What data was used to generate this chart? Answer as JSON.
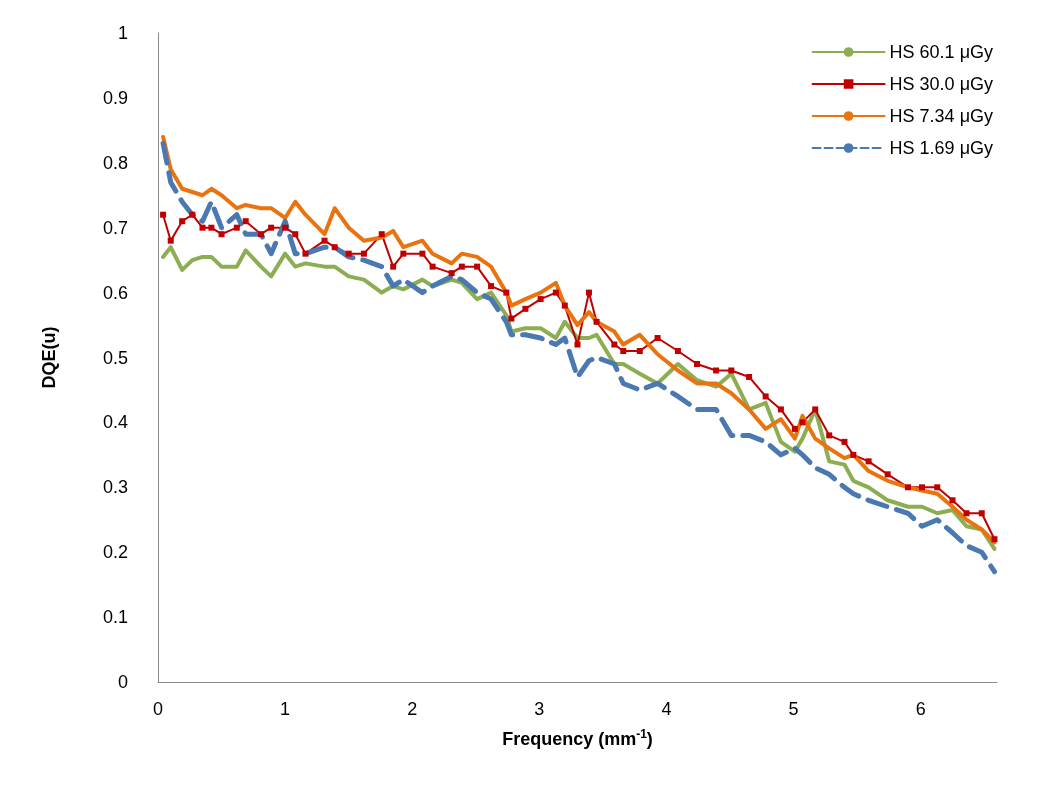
{
  "chart_data": {
    "type": "line",
    "xlabel": "Frequency (mm$^{-1}$)",
    "ylabel": "DQE(u)",
    "xlim": [
      0,
      6.6
    ],
    "xticks": [
      0,
      1,
      2,
      3,
      4,
      5,
      6
    ],
    "ylim": [
      0,
      1
    ],
    "yticks": [
      0,
      0.1,
      0.2,
      0.3,
      0.4,
      0.5,
      0.6,
      0.7,
      0.8,
      0.9,
      1
    ],
    "grid": false,
    "legend": "top right",
    "x": [
      0.04,
      0.1,
      0.19,
      0.27,
      0.35,
      0.42,
      0.5,
      0.62,
      0.69,
      0.81,
      0.89,
      1.0,
      1.08,
      1.16,
      1.31,
      1.39,
      1.5,
      1.62,
      1.76,
      1.85,
      1.93,
      2.08,
      2.16,
      2.31,
      2.39,
      2.51,
      2.62,
      2.74,
      2.78,
      2.89,
      3.01,
      3.13,
      3.2,
      3.3,
      3.39,
      3.45,
      3.59,
      3.66,
      3.79,
      3.93,
      4.09,
      4.24,
      4.39,
      4.51,
      4.65,
      4.78,
      4.9,
      5.01,
      5.07,
      5.17,
      5.28,
      5.4,
      5.47,
      5.59,
      5.74,
      5.9,
      6.01,
      6.13,
      6.25,
      6.36,
      6.48,
      6.58
    ],
    "series": [
      {
        "name": "HS 60.1 μGy",
        "color": "#8cad52",
        "marker": "none",
        "line_style": "solid",
        "values": [
          0.655,
          0.67,
          0.635,
          0.65,
          0.655,
          0.655,
          0.64,
          0.64,
          0.665,
          0.64,
          0.625,
          0.66,
          0.64,
          0.645,
          0.64,
          0.64,
          0.625,
          0.62,
          0.6,
          0.61,
          0.605,
          0.62,
          0.61,
          0.62,
          0.615,
          0.59,
          0.6,
          0.565,
          0.54,
          0.545,
          0.545,
          0.53,
          0.555,
          0.53,
          0.53,
          0.535,
          0.49,
          0.49,
          0.475,
          0.46,
          0.49,
          0.465,
          0.455,
          0.475,
          0.42,
          0.43,
          0.37,
          0.355,
          0.375,
          0.42,
          0.34,
          0.335,
          0.31,
          0.3,
          0.28,
          0.27,
          0.27,
          0.26,
          0.265,
          0.24,
          0.235,
          0.205
        ]
      },
      {
        "name": "HS 30.0 μGy",
        "color": "#c00000",
        "marker": "square",
        "line_style": "solid",
        "values": [
          0.72,
          0.68,
          0.71,
          0.72,
          0.7,
          0.7,
          0.69,
          0.7,
          0.71,
          0.69,
          0.7,
          0.7,
          0.69,
          0.66,
          0.68,
          0.67,
          0.66,
          0.66,
          0.69,
          0.64,
          0.66,
          0.66,
          0.64,
          0.63,
          0.64,
          0.64,
          0.61,
          0.6,
          0.56,
          0.575,
          0.59,
          0.6,
          0.58,
          0.52,
          0.6,
          0.555,
          0.52,
          0.51,
          0.51,
          0.53,
          0.51,
          0.49,
          0.48,
          0.48,
          0.47,
          0.44,
          0.42,
          0.39,
          0.4,
          0.42,
          0.38,
          0.37,
          0.35,
          0.34,
          0.32,
          0.3,
          0.3,
          0.3,
          0.28,
          0.26,
          0.26,
          0.22
        ]
      },
      {
        "name": "HS 7.34 μGy",
        "color": "#e8730f",
        "marker": "none",
        "line_style": "solid",
        "values": [
          0.84,
          0.79,
          0.76,
          0.755,
          0.75,
          0.76,
          0.75,
          0.73,
          0.735,
          0.73,
          0.73,
          0.715,
          0.74,
          0.72,
          0.69,
          0.73,
          0.7,
          0.68,
          0.685,
          0.695,
          0.67,
          0.68,
          0.66,
          0.645,
          0.66,
          0.655,
          0.64,
          0.6,
          0.58,
          0.59,
          0.6,
          0.615,
          0.58,
          0.55,
          0.57,
          0.555,
          0.54,
          0.52,
          0.535,
          0.505,
          0.48,
          0.46,
          0.46,
          0.445,
          0.42,
          0.39,
          0.405,
          0.375,
          0.41,
          0.375,
          0.36,
          0.345,
          0.35,
          0.325,
          0.31,
          0.3,
          0.295,
          0.29,
          0.27,
          0.25,
          0.235,
          0.215
        ]
      },
      {
        "name": "HS 1.69 μGy",
        "color": "#4a78b0",
        "marker": "none",
        "line_style": "dashed",
        "values": [
          0.83,
          0.77,
          0.74,
          0.72,
          0.71,
          0.74,
          0.7,
          0.72,
          0.69,
          0.69,
          0.66,
          0.71,
          0.66,
          0.66,
          0.67,
          0.67,
          0.655,
          0.65,
          0.64,
          0.61,
          0.62,
          0.6,
          0.61,
          0.625,
          0.62,
          0.6,
          0.59,
          0.555,
          0.535,
          0.535,
          0.53,
          0.52,
          0.53,
          0.47,
          0.495,
          0.5,
          0.49,
          0.46,
          0.45,
          0.46,
          0.44,
          0.42,
          0.42,
          0.38,
          0.38,
          0.37,
          0.35,
          0.36,
          0.35,
          0.33,
          0.32,
          0.3,
          0.29,
          0.28,
          0.27,
          0.26,
          0.24,
          0.25,
          0.23,
          0.21,
          0.2,
          0.17
        ]
      }
    ]
  }
}
